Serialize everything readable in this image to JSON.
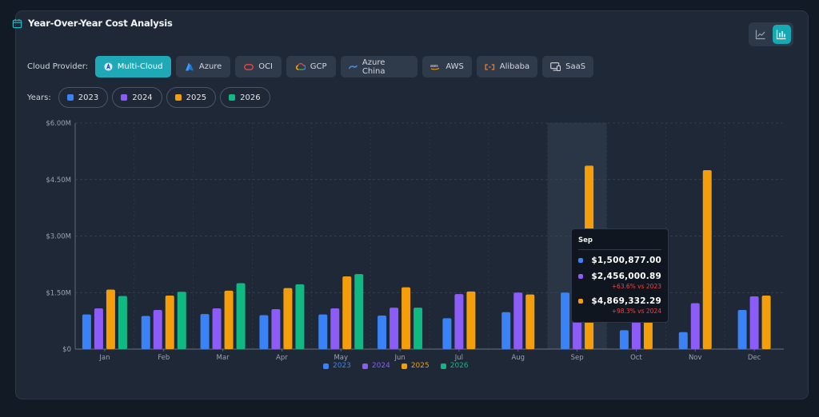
{
  "title": "Year-Over-Year Cost Analysis",
  "toggle": {
    "active": "bar"
  },
  "providers": {
    "label": "Cloud Provider:",
    "items": [
      {
        "label": "Multi-Cloud",
        "icon": "multi-cloud-icon",
        "active": true
      },
      {
        "label": "Azure",
        "icon": "azure-icon"
      },
      {
        "label": "OCI",
        "icon": "oci-icon"
      },
      {
        "label": "GCP",
        "icon": "gcp-icon"
      },
      {
        "label": "Azure China",
        "icon": "azure-china-icon"
      },
      {
        "label": "AWS",
        "icon": "aws-icon"
      },
      {
        "label": "Alibaba",
        "icon": "alibaba-icon"
      },
      {
        "label": "SaaS",
        "icon": "saas-icon"
      }
    ]
  },
  "years": {
    "label": "Years:",
    "items": [
      {
        "label": "2023",
        "color": "#3b82f6"
      },
      {
        "label": "2024",
        "color": "#8b5cf6"
      },
      {
        "label": "2025",
        "color": "#f59e0b"
      },
      {
        "label": "2026",
        "color": "#10b981"
      }
    ]
  },
  "tooltip": {
    "month": "Sep",
    "rows": [
      {
        "color": "#3b82f6",
        "value": "$1,500,877.00",
        "change": ""
      },
      {
        "color": "#8b5cf6",
        "value": "$2,456,000.89",
        "change": "+63.6% vs 2023"
      },
      {
        "color": "#f59e0b",
        "value": "$4,869,332.29",
        "change": "+98.3% vs 2024"
      }
    ]
  },
  "chart_data": {
    "type": "bar",
    "categories": [
      "Jan",
      "Feb",
      "Mar",
      "Apr",
      "May",
      "Jun",
      "Jul",
      "Aug",
      "Sep",
      "Oct",
      "Nov",
      "Dec"
    ],
    "ylim": [
      0,
      6000000
    ],
    "yticks": [
      {
        "value": 0,
        "label": "$0"
      },
      {
        "value": 1500000,
        "label": "$1.50M"
      },
      {
        "value": 3000000,
        "label": "$3.00M"
      },
      {
        "value": 4500000,
        "label": "$4.50M"
      },
      {
        "value": 6000000,
        "label": "$6.00M"
      }
    ],
    "highlight_category": "Sep",
    "series": [
      {
        "name": "2023",
        "color": "#3b82f6",
        "values": [
          920000,
          880000,
          930000,
          900000,
          920000,
          890000,
          820000,
          980000,
          1500877,
          500000,
          450000,
          1040000
        ]
      },
      {
        "name": "2024",
        "color": "#8b5cf6",
        "values": [
          1080000,
          1040000,
          1080000,
          1060000,
          1080000,
          1100000,
          1460000,
          1500000,
          2456001,
          1100000,
          1220000,
          1400000
        ]
      },
      {
        "name": "2025",
        "color": "#f59e0b",
        "values": [
          1580000,
          1420000,
          1550000,
          1620000,
          1930000,
          1640000,
          1530000,
          1450000,
          4869332,
          1050000,
          4750000,
          1420000
        ]
      },
      {
        "name": "2026",
        "color": "#10b981",
        "values": [
          1410000,
          1520000,
          1750000,
          1720000,
          1990000,
          1100000,
          null,
          null,
          null,
          null,
          null,
          null
        ]
      }
    ],
    "legend_position": "bottom-center",
    "grid": true
  }
}
